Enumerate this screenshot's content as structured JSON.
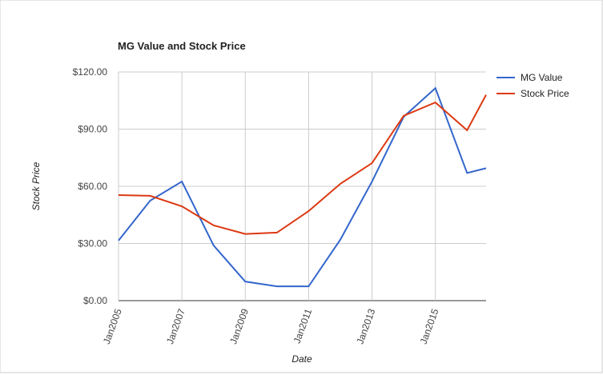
{
  "chart_data": {
    "type": "line",
    "title": "MG Value and Stock Price",
    "x_label": "Date",
    "y_label": "Stock Price",
    "x": [
      2005,
      2006,
      2007,
      2008,
      2009,
      2010,
      2011,
      2012,
      2013,
      2014,
      2015,
      2016,
      2016.6
    ],
    "series": [
      {
        "name": "MG Value",
        "color": "#3366cc",
        "values": [
          31.5,
          52.5,
          62.5,
          29,
          10,
          7.5,
          7.5,
          32,
          62.5,
          96.5,
          111.5,
          67,
          69.5
        ]
      },
      {
        "name": "Stock Price",
        "color": "#dc3912",
        "values": [
          55.4,
          55,
          49.5,
          39.5,
          35,
          35.7,
          47,
          61.3,
          72.2,
          97,
          104,
          89.4,
          108
        ]
      }
    ],
    "xlim": [
      2005,
      2016.6
    ],
    "xticks": [
      {
        "value": 2005,
        "label": "Jan2005"
      },
      {
        "value": 2007,
        "label": "Jan2007"
      },
      {
        "value": 2009,
        "label": "Jan2009"
      },
      {
        "value": 2011,
        "label": "Jan2011"
      },
      {
        "value": 2013,
        "label": "Jan2013"
      },
      {
        "value": 2015,
        "label": "Jan2015"
      }
    ],
    "ylim": [
      0,
      120
    ],
    "yticks": [
      {
        "value": 0,
        "label": "$0.00"
      },
      {
        "value": 30,
        "label": "$30.00"
      },
      {
        "value": 60,
        "label": "$60.00"
      },
      {
        "value": 90,
        "label": "$90.00"
      },
      {
        "value": 120,
        "label": "$120.00"
      }
    ],
    "grid": true,
    "legend": "right"
  }
}
